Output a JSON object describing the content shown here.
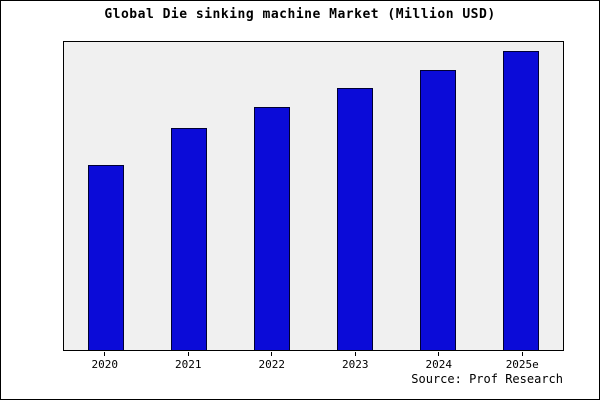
{
  "chart_data": {
    "type": "bar",
    "title": "Global Die sinking machine Market (Million USD)",
    "categories": [
      "2020",
      "2021",
      "2022",
      "2023",
      "2024",
      "2025e"
    ],
    "values": [
      60,
      72,
      79,
      85,
      91,
      97
    ],
    "xlabel": "",
    "ylabel": "",
    "ylim": [
      0,
      100
    ],
    "grid": false,
    "legend": false,
    "bar_color": "#0b0bd8",
    "bar_edge_color": "#000033",
    "plot_bg": "#f0f0f0"
  },
  "source": {
    "text": "Source: Prof Research"
  }
}
